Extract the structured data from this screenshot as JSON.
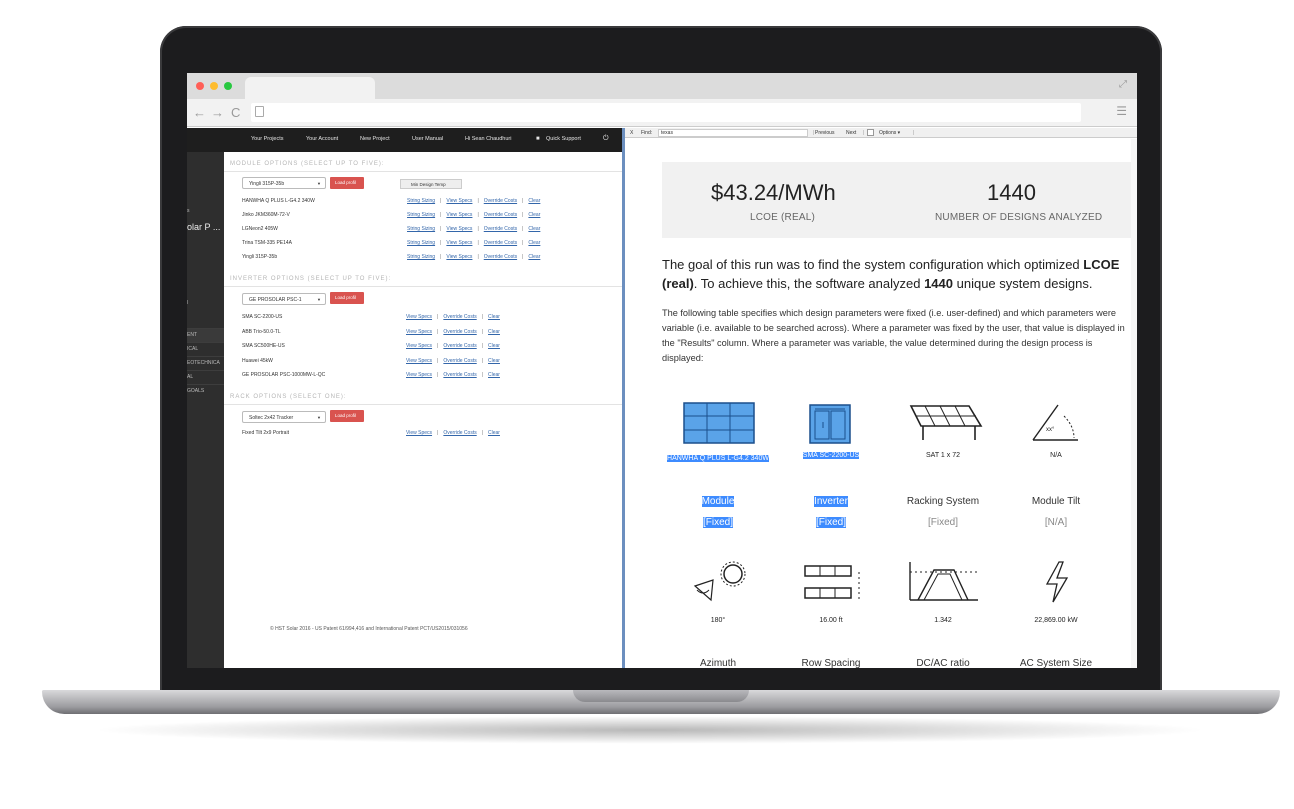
{
  "browser": {
    "traffic_colors": [
      "#ff5f57",
      "#febc2e",
      "#28c840"
    ],
    "nav": {
      "back": "←",
      "forward": "→",
      "reload": "C"
    }
  },
  "app": {
    "topnav": {
      "items": [
        "Your Projects",
        "Your Account",
        "New Project",
        "User Manual",
        "Hi Sean Chaudhuri",
        "Quick Support"
      ]
    },
    "sidebar": {
      "project_fragment": "olar P ...",
      "fragments": [
        "ENT",
        "ICAL",
        "EOTECHNICA",
        "AL",
        "GOALS"
      ]
    },
    "module_section": {
      "title": "MODULE OPTIONS (SELECT UP TO FIVE):",
      "select_value": "Yingli 315P-35b",
      "load_label": "Load profil",
      "min_design_label": "Min Design Temp",
      "items": [
        "HANWHA Q PLUS L-G4.2 340W",
        "Jinko JKM360M-72-V",
        "LGNeon2 405W",
        "Trina TSM-335 PE14A",
        "Yingli 315P-35b"
      ],
      "links": [
        "String Sizing",
        "View Specs",
        "Override Costs",
        "Clear"
      ]
    },
    "inverter_section": {
      "title": "INVERTER OPTIONS (SELECT UP TO FIVE):",
      "select_value": "GE PROSOLAR PSC-1",
      "load_label": "Load profil",
      "items": [
        "SMA SC-2200-US",
        "ABB Trio-50.0-TL",
        "SMA SC500HE-US",
        "Huawei 45kW",
        "GE PROSOLAR PSC-1000MW-L-QC"
      ],
      "links": [
        "View Specs",
        "Override Costs",
        "Clear"
      ]
    },
    "rack_section": {
      "title": "RACK OPTIONS (SELECT ONE):",
      "select_value": "Soltec 2x42 Tracker",
      "load_label": "Load profil",
      "items": [
        "Fixed Tilt 2x9 Portrait"
      ],
      "links": [
        "View Specs",
        "Override Costs",
        "Clear"
      ]
    },
    "footer": "© HST Solar 2016 - US Patent 61/994,416 and International Patent PCT/US2015/031056"
  },
  "findbar": {
    "close": "X",
    "label": "Find:",
    "query": "texas",
    "previous": "Previous",
    "next": "Next",
    "options": "Options ▾"
  },
  "report": {
    "lcoe_value": "$43.24/MWh",
    "lcoe_label": "LCOE (REAL)",
    "designs_value": "1440",
    "designs_label": "NUMBER OF DESIGNS ANALYZED",
    "goal_a": "The goal of this run was to find the system configuration which optimized ",
    "goal_b": "LCOE (real)",
    "goal_c": ". To achieve this, the software analyzed ",
    "goal_d": "1440",
    "goal_e": " unique system designs.",
    "description": "The following table specifies which design parameters were fixed (i.e. user-defined) and which parameters were variable (i.e. available to be searched across). Where a parameter was fixed by the user, that value is displayed in the \"Results\" column. Where a parameter was variable, the value determined during the design process is displayed:",
    "params_row1": [
      {
        "icon": "solar-module-icon",
        "caption": "HANWHA Q PLUS L-G4.2 340W",
        "name": "Module",
        "status": "[Fixed]"
      },
      {
        "icon": "inverter-icon",
        "caption": "SMA SC-2200-US",
        "name": "Inverter",
        "status": "[Fixed]"
      },
      {
        "icon": "racking-icon",
        "caption": "SAT 1 x 72",
        "name": "Racking System",
        "status": "[Fixed]"
      },
      {
        "icon": "tilt-angle-icon",
        "caption": "N/A",
        "name": "Module Tilt",
        "status": "[N/A]"
      }
    ],
    "tilt_glyph": "xx°",
    "params_row2": [
      {
        "icon": "azimuth-icon",
        "caption": "180°",
        "name": "Azimuth"
      },
      {
        "icon": "row-spacing-icon",
        "caption": "16.00 ft",
        "name": "Row Spacing"
      },
      {
        "icon": "dcac-ratio-icon",
        "caption": "1.342",
        "name": "DC/AC ratio"
      },
      {
        "icon": "lightning-icon",
        "caption": "22,869.00 kW",
        "name": "AC System Size"
      }
    ],
    "highlight_color": "#3d8bff"
  }
}
